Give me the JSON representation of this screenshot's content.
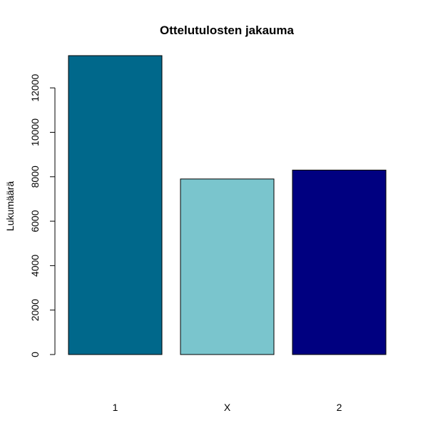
{
  "chart_data": {
    "type": "bar",
    "title": "Ottelutulosten jakauma",
    "xlabel": "",
    "ylabel": "Lukumäärä",
    "categories": [
      "1",
      "X",
      "2"
    ],
    "values": [
      13450,
      7900,
      8300
    ],
    "colors": [
      "#00688B",
      "#7AC5CD",
      "#000080"
    ],
    "ylim": [
      0,
      13450
    ],
    "yticks": [
      0,
      2000,
      4000,
      6000,
      8000,
      10000,
      12000
    ],
    "grid": false,
    "legend": "none"
  }
}
